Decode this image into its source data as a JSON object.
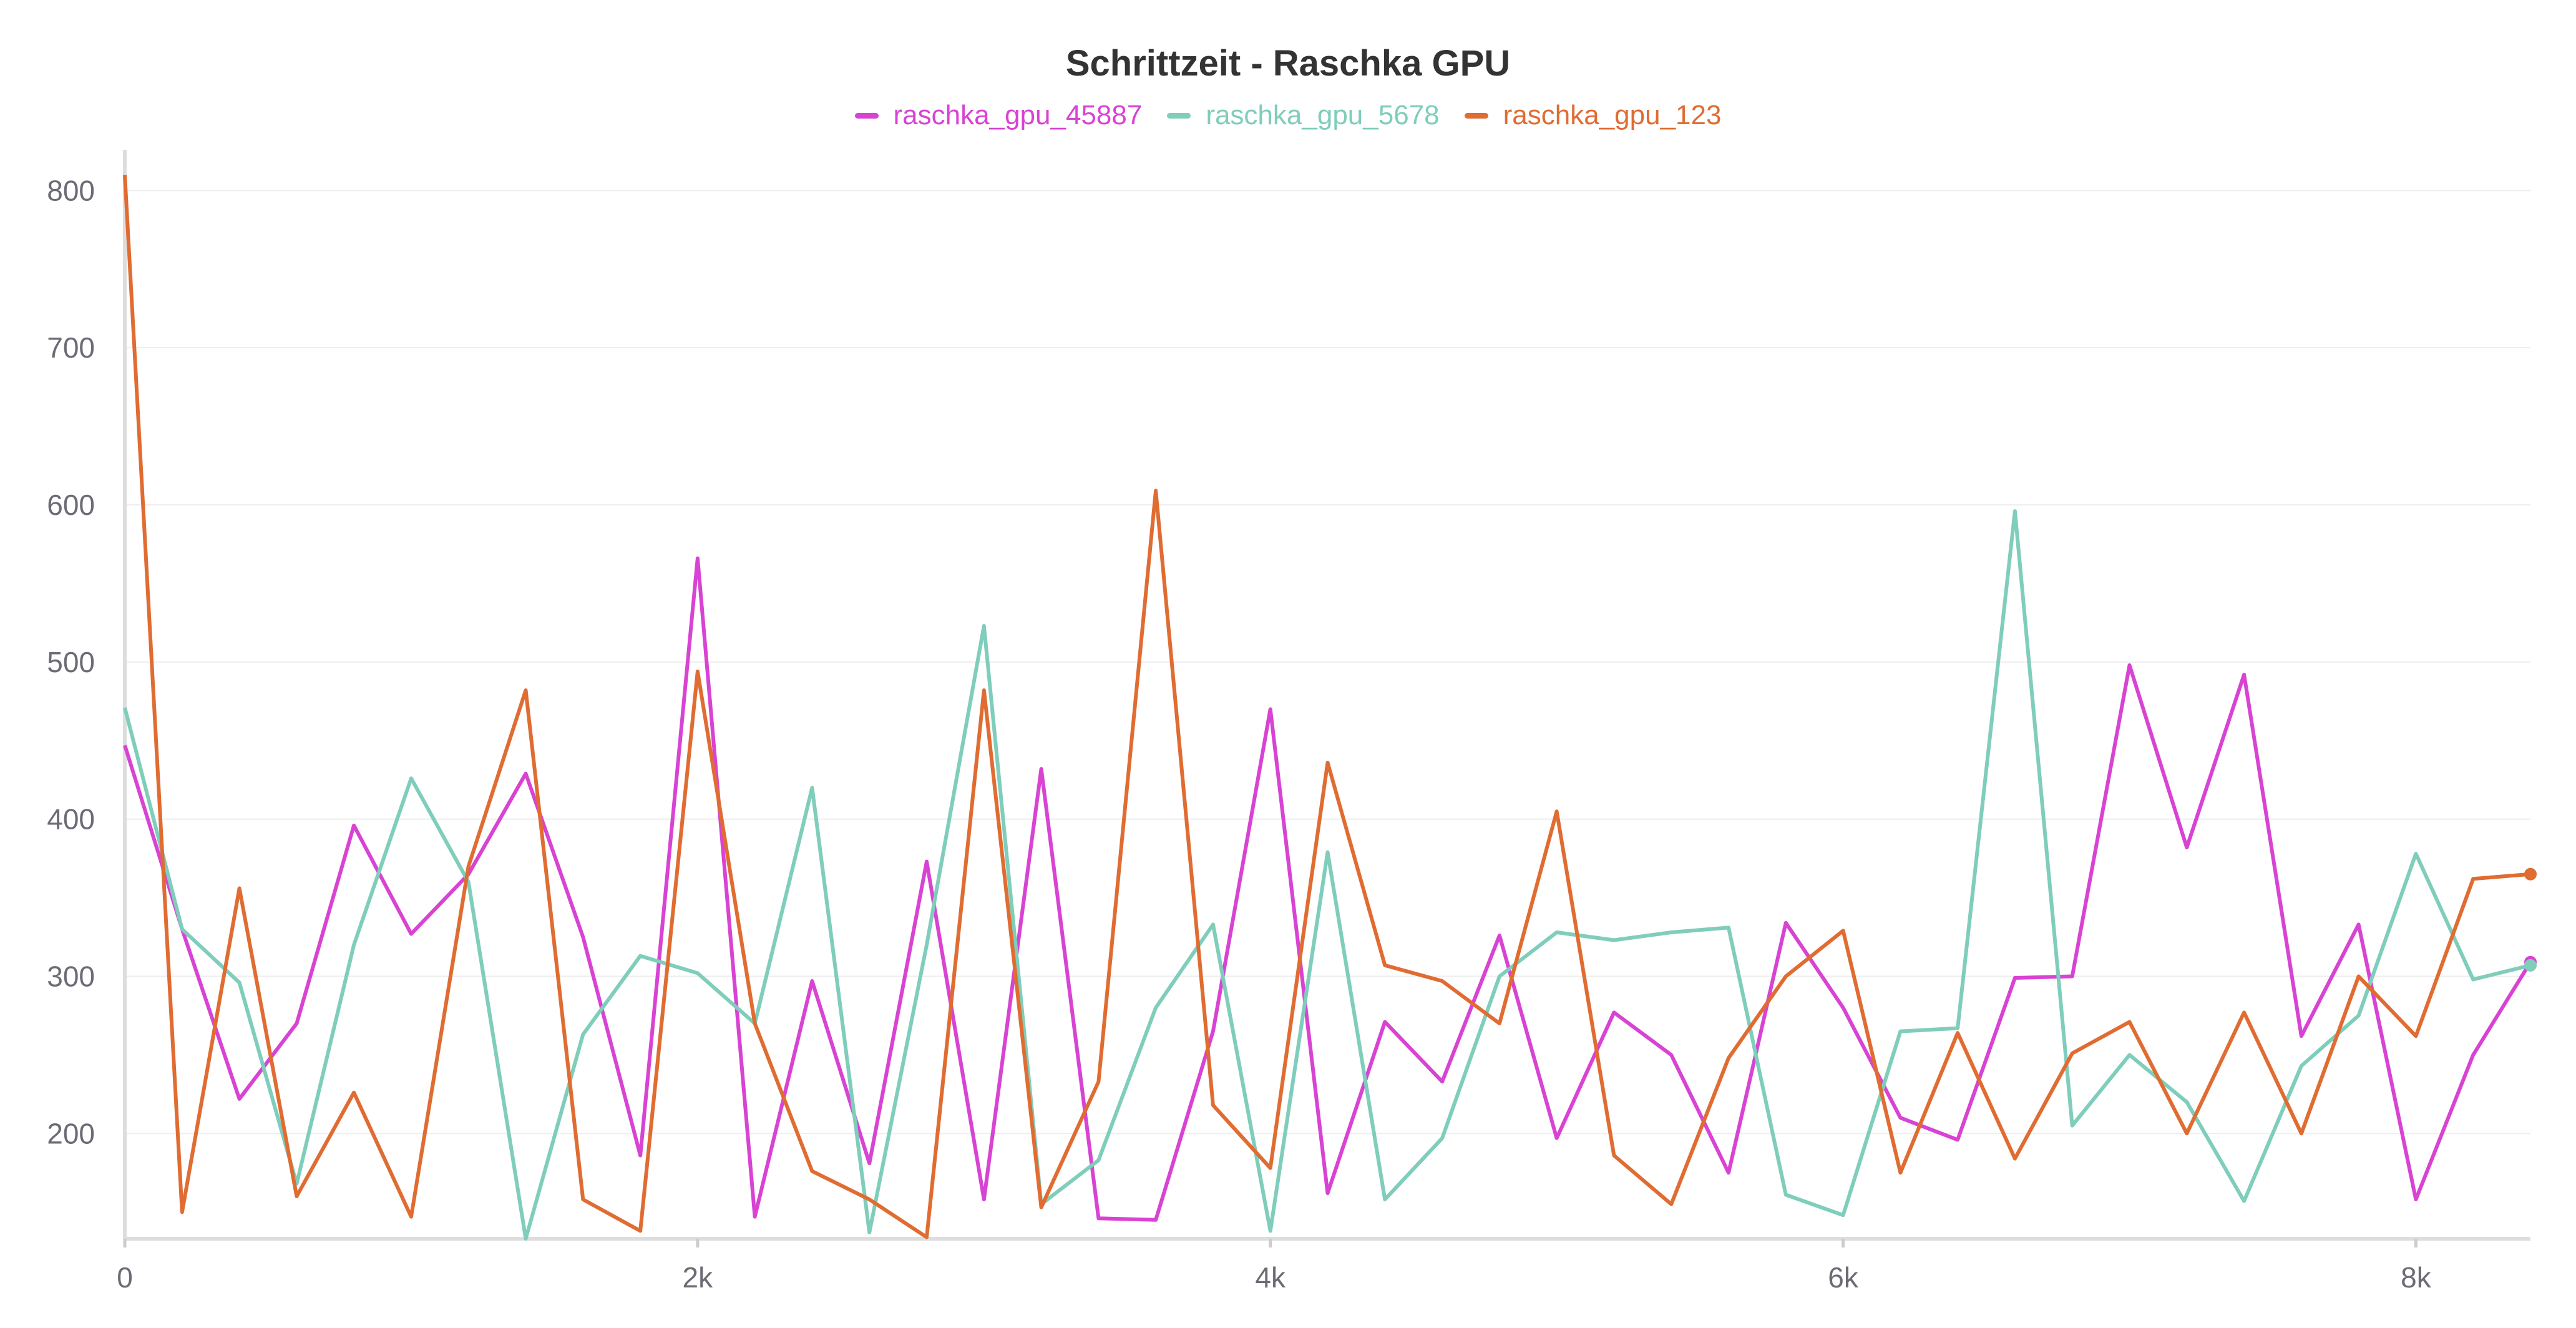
{
  "chart_data": {
    "type": "line",
    "title": "Schrittzeit - Raschka GPU",
    "xlabel": "",
    "ylabel": "",
    "xlim": [
      0,
      8400
    ],
    "ylim": [
      133,
      820
    ],
    "x_ticks": [
      0,
      2000,
      4000,
      6000,
      8000
    ],
    "x_tick_labels": [
      "0",
      "2k",
      "4k",
      "6k",
      "8k"
    ],
    "y_ticks": [
      200,
      300,
      400,
      500,
      600,
      700,
      800
    ],
    "y_tick_labels": [
      "200",
      "300",
      "400",
      "500",
      "600",
      "700",
      "800"
    ],
    "grid": true,
    "legend_position": "top-center",
    "x": [
      0,
      200,
      400,
      600,
      800,
      1000,
      1200,
      1400,
      1600,
      1800,
      2000,
      2200,
      2400,
      2600,
      2800,
      3000,
      3200,
      3400,
      3600,
      3800,
      4000,
      4200,
      4400,
      4600,
      4800,
      5000,
      5200,
      5400,
      5600,
      5800,
      6000,
      6200,
      6400,
      6600,
      6800,
      7000,
      7200,
      7400,
      7600,
      7800,
      8000,
      8200,
      8400
    ],
    "series": [
      {
        "name": "raschka_gpu_45887",
        "color": "#d843d3",
        "values": [
          447,
          330,
          222,
          270,
          396,
          327,
          365,
          429,
          325,
          186,
          566,
          147,
          297,
          181,
          373,
          158,
          432,
          146,
          145,
          265,
          470,
          162,
          271,
          233,
          326,
          197,
          277,
          250,
          175,
          334,
          280,
          210,
          196,
          299,
          300,
          498,
          382,
          492,
          262,
          333,
          158,
          250,
          309
        ]
      },
      {
        "name": "raschka_gpu_5678",
        "color": "#7fcdbb",
        "values": [
          471,
          330,
          296,
          168,
          320,
          426,
          360,
          133,
          263,
          313,
          302,
          270,
          420,
          137,
          320,
          523,
          155,
          183,
          280,
          333,
          138,
          379,
          158,
          197,
          300,
          328,
          323,
          328,
          331,
          161,
          148,
          265,
          267,
          596,
          205,
          250,
          220,
          157,
          243,
          275,
          378,
          298,
          307
        ]
      },
      {
        "name": "raschka_gpu_123",
        "color": "#e06c32",
        "values": [
          810,
          150,
          356,
          160,
          226,
          147,
          370,
          482,
          158,
          138,
          494,
          270,
          176,
          158,
          134,
          482,
          153,
          233,
          609,
          218,
          178,
          436,
          307,
          297,
          270,
          405,
          186,
          155,
          248,
          300,
          329,
          175,
          264,
          184,
          251,
          271,
          200,
          277,
          200,
          300,
          262,
          362,
          365
        ]
      }
    ]
  }
}
